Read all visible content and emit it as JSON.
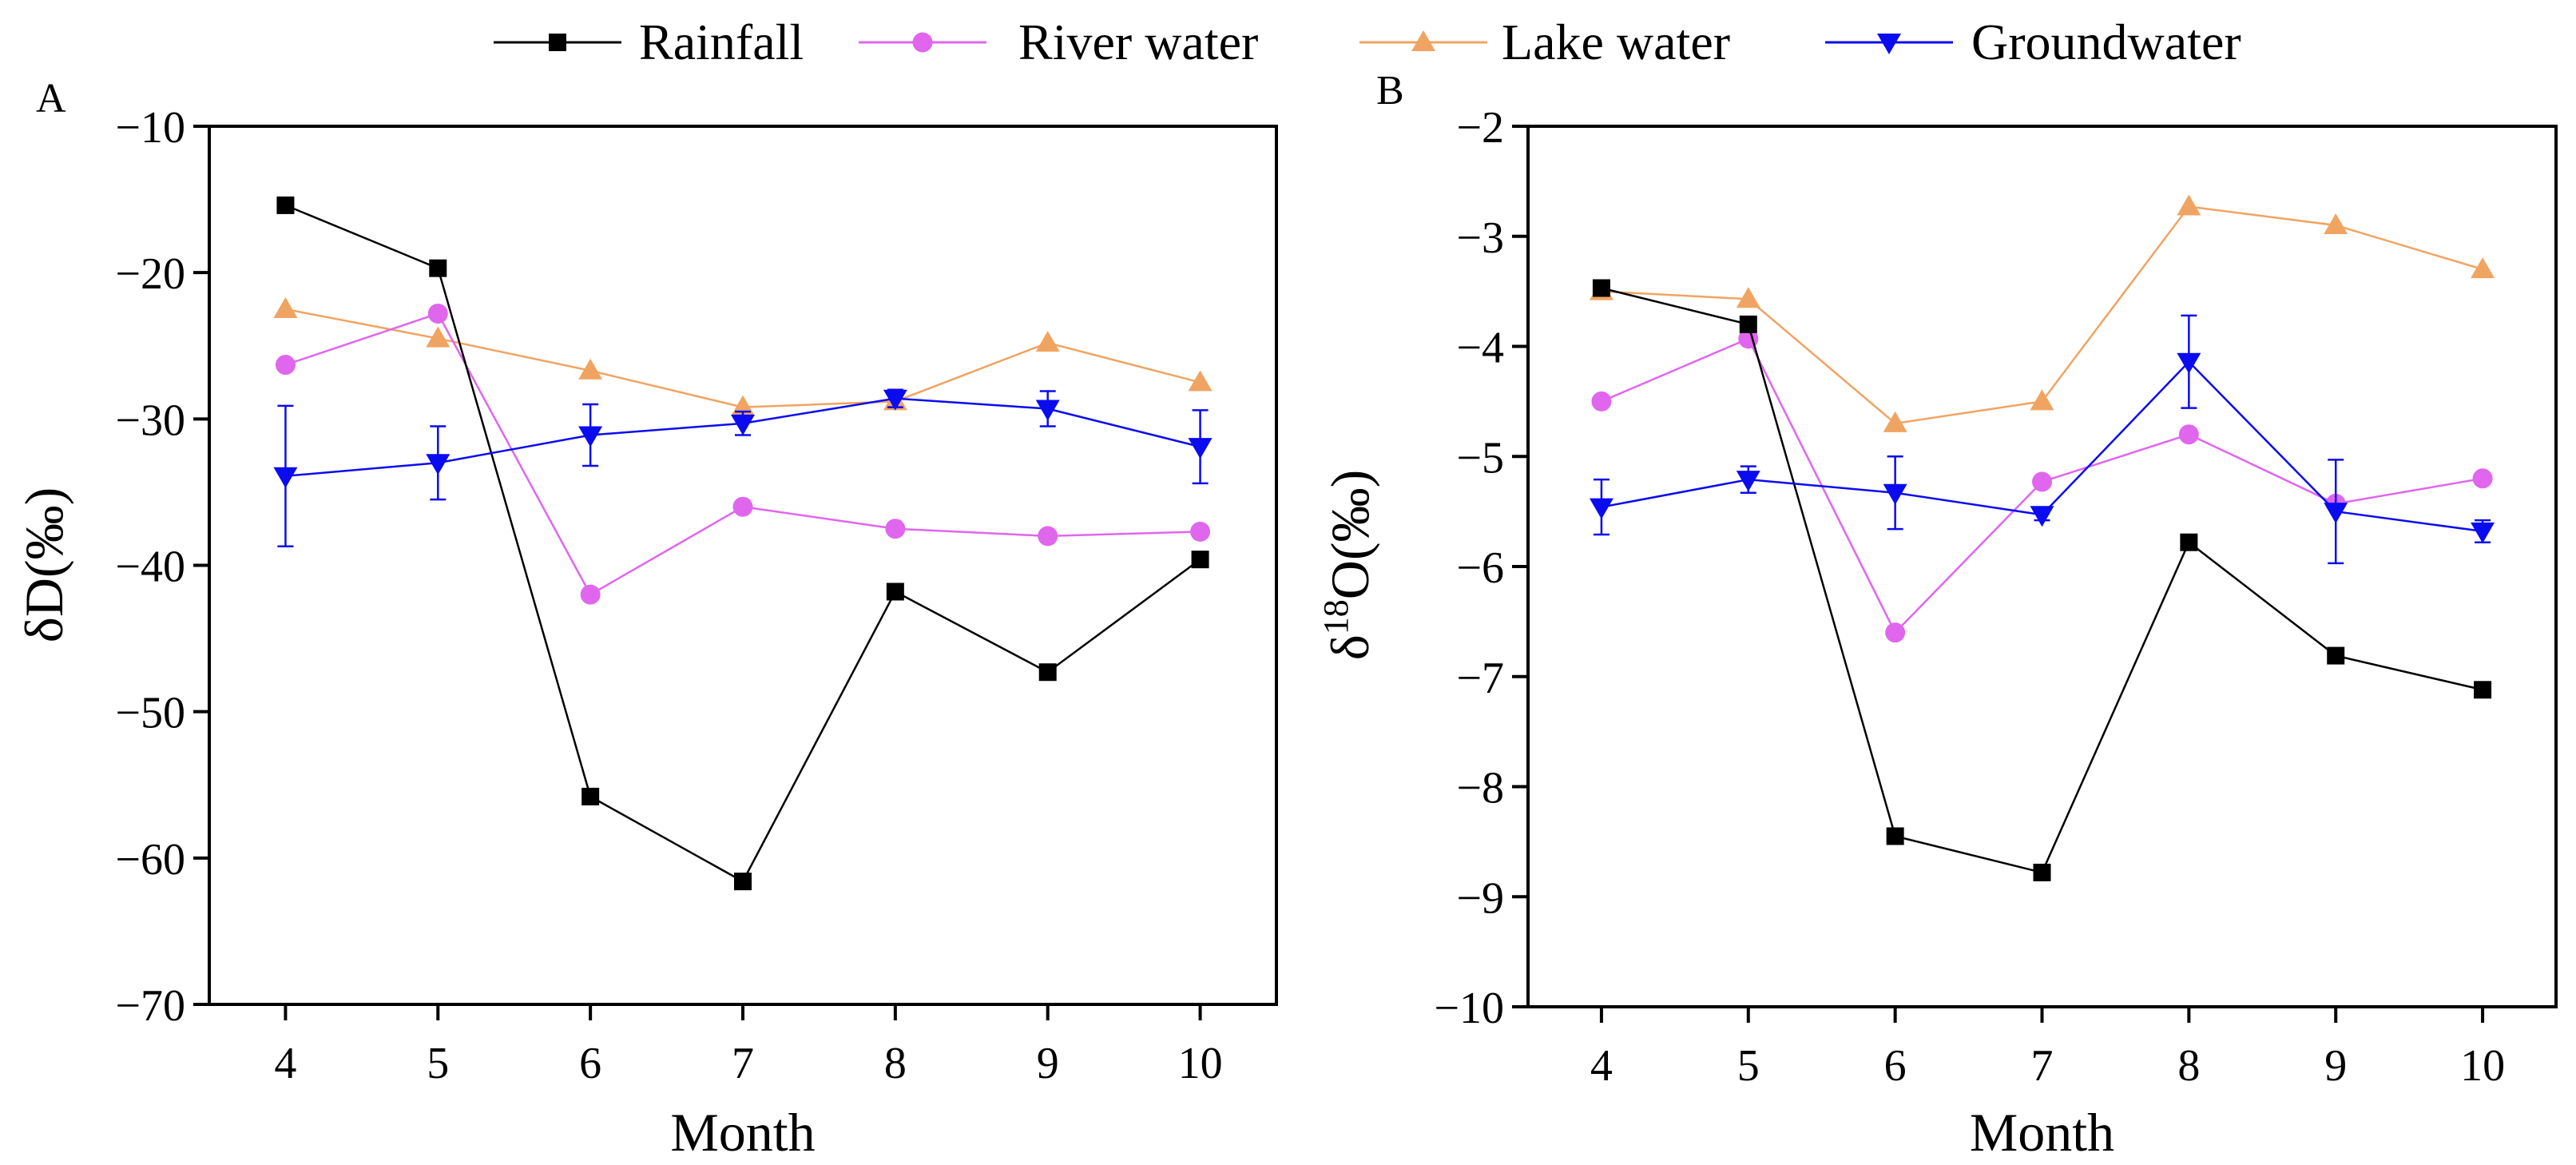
{
  "legend": [
    {
      "name": "Rainfall",
      "color": "#000000",
      "marker": "square"
    },
    {
      "name": "River water",
      "color": "#e066ee",
      "marker": "circle"
    },
    {
      "name": "Lake water",
      "color": "#f0a462",
      "marker": "triangle-up"
    },
    {
      "name": "Groundwater",
      "color": "#0b0bf0",
      "marker": "triangle-down"
    }
  ],
  "chart_data": [
    {
      "type": "line",
      "panel": "A",
      "xlabel": "Month",
      "ylabel": "δD(‰)",
      "x": [
        4,
        5,
        6,
        7,
        8,
        9,
        10
      ],
      "xlim": [
        3.5,
        10.5
      ],
      "ylim": [
        -70,
        -10
      ],
      "yticks": [
        -70,
        -60,
        -50,
        -40,
        -30,
        -20,
        -10
      ],
      "xticks": [
        4,
        5,
        6,
        7,
        8,
        9,
        10
      ],
      "tick_labels": {
        "x": [
          "4",
          "5",
          "6",
          "7",
          "8",
          "9",
          "10"
        ],
        "y": [
          "−70",
          "−60",
          "−50",
          "−40",
          "−30",
          "−20",
          "−10"
        ]
      },
      "series": [
        {
          "name": "Rainfall",
          "values": [
            -15.4,
            -19.7,
            -55.8,
            -61.6,
            -41.8,
            -47.3,
            -39.6
          ]
        },
        {
          "name": "River water",
          "values": [
            -26.3,
            -22.8,
            -42.0,
            -36.0,
            -37.5,
            -38.0,
            -37.7
          ]
        },
        {
          "name": "Lake water",
          "values": [
            -22.5,
            -24.5,
            -26.7,
            -29.2,
            -28.8,
            -24.8,
            -27.5
          ]
        },
        {
          "name": "Groundwater",
          "values": [
            -33.9,
            -33.0,
            -31.1,
            -30.3,
            -28.6,
            -29.3,
            -31.9
          ],
          "errors": [
            4.8,
            2.5,
            2.1,
            0.8,
            0.6,
            1.2,
            2.5
          ]
        }
      ]
    },
    {
      "type": "line",
      "panel": "B",
      "xlabel": "Month",
      "ylabel": "δ18O(‰)",
      "ylabel_parts": {
        "delta": "δ",
        "sup": "18",
        "rest": "O(‰)"
      },
      "x": [
        4,
        5,
        6,
        7,
        8,
        9,
        10
      ],
      "xlim": [
        3.5,
        10.5
      ],
      "ylim": [
        -10,
        -2
      ],
      "yticks": [
        -10,
        -9,
        -8,
        -7,
        -6,
        -5,
        -4,
        -3,
        -2
      ],
      "xticks": [
        4,
        5,
        6,
        7,
        8,
        9,
        10
      ],
      "tick_labels": {
        "x": [
          "4",
          "5",
          "6",
          "7",
          "8",
          "9",
          "10"
        ],
        "y": [
          "−10",
          "−9",
          "−8",
          "−7",
          "−6",
          "−5",
          "−4",
          "−3",
          "−2"
        ]
      },
      "series": [
        {
          "name": "Rainfall",
          "values": [
            -3.47,
            -3.8,
            -8.45,
            -8.78,
            -5.78,
            -6.81,
            -7.12
          ]
        },
        {
          "name": "River water",
          "values": [
            -4.5,
            -3.93,
            -6.6,
            -5.23,
            -4.8,
            -5.43,
            -5.2
          ]
        },
        {
          "name": "Lake water",
          "values": [
            -3.5,
            -3.57,
            -4.7,
            -4.5,
            -2.73,
            -2.9,
            -3.3
          ]
        },
        {
          "name": "Groundwater",
          "values": [
            -5.46,
            -5.21,
            -5.33,
            -5.53,
            -4.14,
            -5.5,
            -5.68
          ],
          "errors": [
            0.25,
            0.12,
            0.33,
            0.05,
            0.42,
            0.47,
            0.1
          ]
        }
      ]
    }
  ]
}
